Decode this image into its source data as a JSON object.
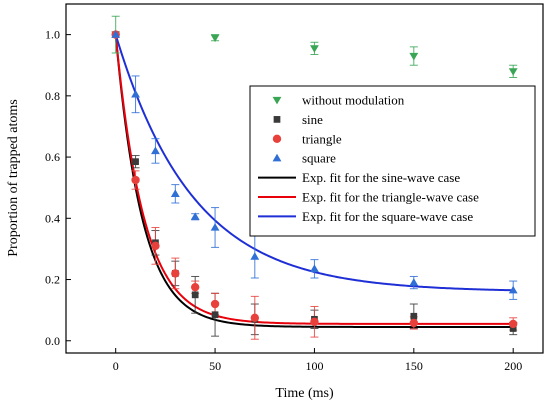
{
  "chart_data": {
    "type": "scatter",
    "title": "",
    "xlabel": "Time (ms)",
    "ylabel": "Proportion of trapped atoms",
    "xlim": [
      -25,
      215
    ],
    "ylim": [
      -0.04,
      1.1
    ],
    "xticks": [
      0,
      50,
      100,
      150,
      200
    ],
    "yticks": [
      0.0,
      0.2,
      0.4,
      0.6,
      0.8,
      1.0
    ],
    "xtick_labels": [
      "0",
      "50",
      "100",
      "150",
      "200"
    ],
    "ytick_labels": [
      "0.0",
      "0.2",
      "0.4",
      "0.6",
      "0.8",
      "1.0"
    ],
    "grid": false,
    "legend_position": "center-right",
    "series": [
      {
        "name": "without modulation",
        "marker": "triangle-down",
        "color": "#3aa655",
        "points": [
          {
            "x": 0,
            "y": 1.0,
            "err": 0.06
          },
          {
            "x": 50,
            "y": 0.99,
            "err": 0.01
          },
          {
            "x": 100,
            "y": 0.955,
            "err": 0.02
          },
          {
            "x": 150,
            "y": 0.93,
            "err": 0.03
          },
          {
            "x": 200,
            "y": 0.88,
            "err": 0.02
          }
        ]
      },
      {
        "name": "sine",
        "marker": "square",
        "color": "#3a3a3a",
        "points": [
          {
            "x": 0,
            "y": 1.0,
            "err": 0.0
          },
          {
            "x": 10,
            "y": 0.585,
            "err": 0.02
          },
          {
            "x": 20,
            "y": 0.32,
            "err": 0.04
          },
          {
            "x": 30,
            "y": 0.22,
            "err": 0.04
          },
          {
            "x": 40,
            "y": 0.15,
            "err": 0.06
          },
          {
            "x": 50,
            "y": 0.085,
            "err": 0.07
          },
          {
            "x": 70,
            "y": 0.07,
            "err": 0.05
          },
          {
            "x": 100,
            "y": 0.07,
            "err": 0.03
          },
          {
            "x": 150,
            "y": 0.08,
            "err": 0.04
          },
          {
            "x": 200,
            "y": 0.04,
            "err": 0.02
          }
        ]
      },
      {
        "name": "triangle",
        "marker": "circle",
        "color": "#e8413c",
        "points": [
          {
            "x": 0,
            "y": 1.0,
            "err": 0.0
          },
          {
            "x": 10,
            "y": 0.525,
            "err": 0.03
          },
          {
            "x": 20,
            "y": 0.31,
            "err": 0.06
          },
          {
            "x": 30,
            "y": 0.22,
            "err": 0.05
          },
          {
            "x": 40,
            "y": 0.175,
            "err": 0.02
          },
          {
            "x": 50,
            "y": 0.12,
            "err": 0.035
          },
          {
            "x": 70,
            "y": 0.075,
            "err": 0.07
          },
          {
            "x": 100,
            "y": 0.062,
            "err": 0.05
          },
          {
            "x": 150,
            "y": 0.058,
            "err": 0.02
          },
          {
            "x": 200,
            "y": 0.055,
            "err": 0.02
          }
        ]
      },
      {
        "name": "square",
        "marker": "triangle-up",
        "color": "#2f6fd6",
        "points": [
          {
            "x": 0,
            "y": 1.0,
            "err": 0.0
          },
          {
            "x": 10,
            "y": 0.805,
            "err": 0.06
          },
          {
            "x": 20,
            "y": 0.62,
            "err": 0.04
          },
          {
            "x": 30,
            "y": 0.48,
            "err": 0.03
          },
          {
            "x": 40,
            "y": 0.405,
            "err": 0.01
          },
          {
            "x": 50,
            "y": 0.37,
            "err": 0.065
          },
          {
            "x": 70,
            "y": 0.275,
            "err": 0.07
          },
          {
            "x": 100,
            "y": 0.235,
            "err": 0.03
          },
          {
            "x": 150,
            "y": 0.19,
            "err": 0.02
          },
          {
            "x": 200,
            "y": 0.165,
            "err": 0.03
          }
        ]
      }
    ],
    "fits": [
      {
        "name": "Exp. fit for the sine-wave case",
        "color": "#000000",
        "model": "exp",
        "A": 0.955,
        "tau": 13.5,
        "y0": 0.045
      },
      {
        "name": "Exp. fit for the triangle-wave case",
        "color": "#e8000b",
        "model": "exp",
        "A": 0.945,
        "tau": 14.2,
        "y0": 0.055
      },
      {
        "name": "Exp. fit for the square-wave case",
        "color": "#1f2fd6",
        "model": "exp",
        "A": 0.84,
        "tau": 39,
        "y0": 0.16
      }
    ]
  }
}
